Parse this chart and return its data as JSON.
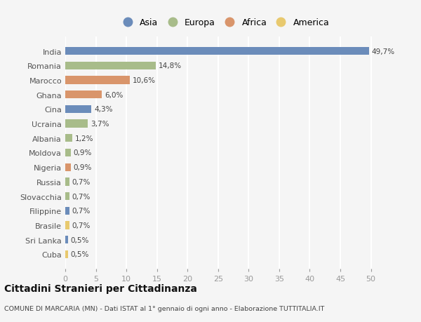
{
  "countries": [
    "India",
    "Romania",
    "Marocco",
    "Ghana",
    "Cina",
    "Ucraina",
    "Albania",
    "Moldova",
    "Nigeria",
    "Russia",
    "Slovacchia",
    "Filippine",
    "Brasile",
    "Sri Lanka",
    "Cuba"
  ],
  "values": [
    49.7,
    14.8,
    10.6,
    6.0,
    4.3,
    3.7,
    1.2,
    0.9,
    0.9,
    0.7,
    0.7,
    0.7,
    0.7,
    0.5,
    0.5
  ],
  "labels": [
    "49,7%",
    "14,8%",
    "10,6%",
    "6,0%",
    "4,3%",
    "3,7%",
    "1,2%",
    "0,9%",
    "0,9%",
    "0,7%",
    "0,7%",
    "0,7%",
    "0,7%",
    "0,5%",
    "0,5%"
  ],
  "continents": [
    "Asia",
    "Europa",
    "Africa",
    "Africa",
    "Asia",
    "Europa",
    "Europa",
    "Europa",
    "Africa",
    "Europa",
    "Europa",
    "Asia",
    "America",
    "Asia",
    "America"
  ],
  "continent_colors": {
    "Asia": "#6b8cba",
    "Europa": "#a8bc8a",
    "Africa": "#d9956b",
    "America": "#e8c96e"
  },
  "legend_order": [
    "Asia",
    "Europa",
    "Africa",
    "America"
  ],
  "xlim": [
    0,
    52
  ],
  "xticks": [
    0,
    5,
    10,
    15,
    20,
    25,
    30,
    35,
    40,
    45,
    50
  ],
  "title": "Cittadini Stranieri per Cittadinanza",
  "subtitle": "COMUNE DI MARCARIA (MN) - Dati ISTAT al 1° gennaio di ogni anno - Elaborazione TUTTITALIA.IT",
  "bg_color": "#f5f5f5",
  "grid_color": "#ffffff",
  "bar_height": 0.55
}
